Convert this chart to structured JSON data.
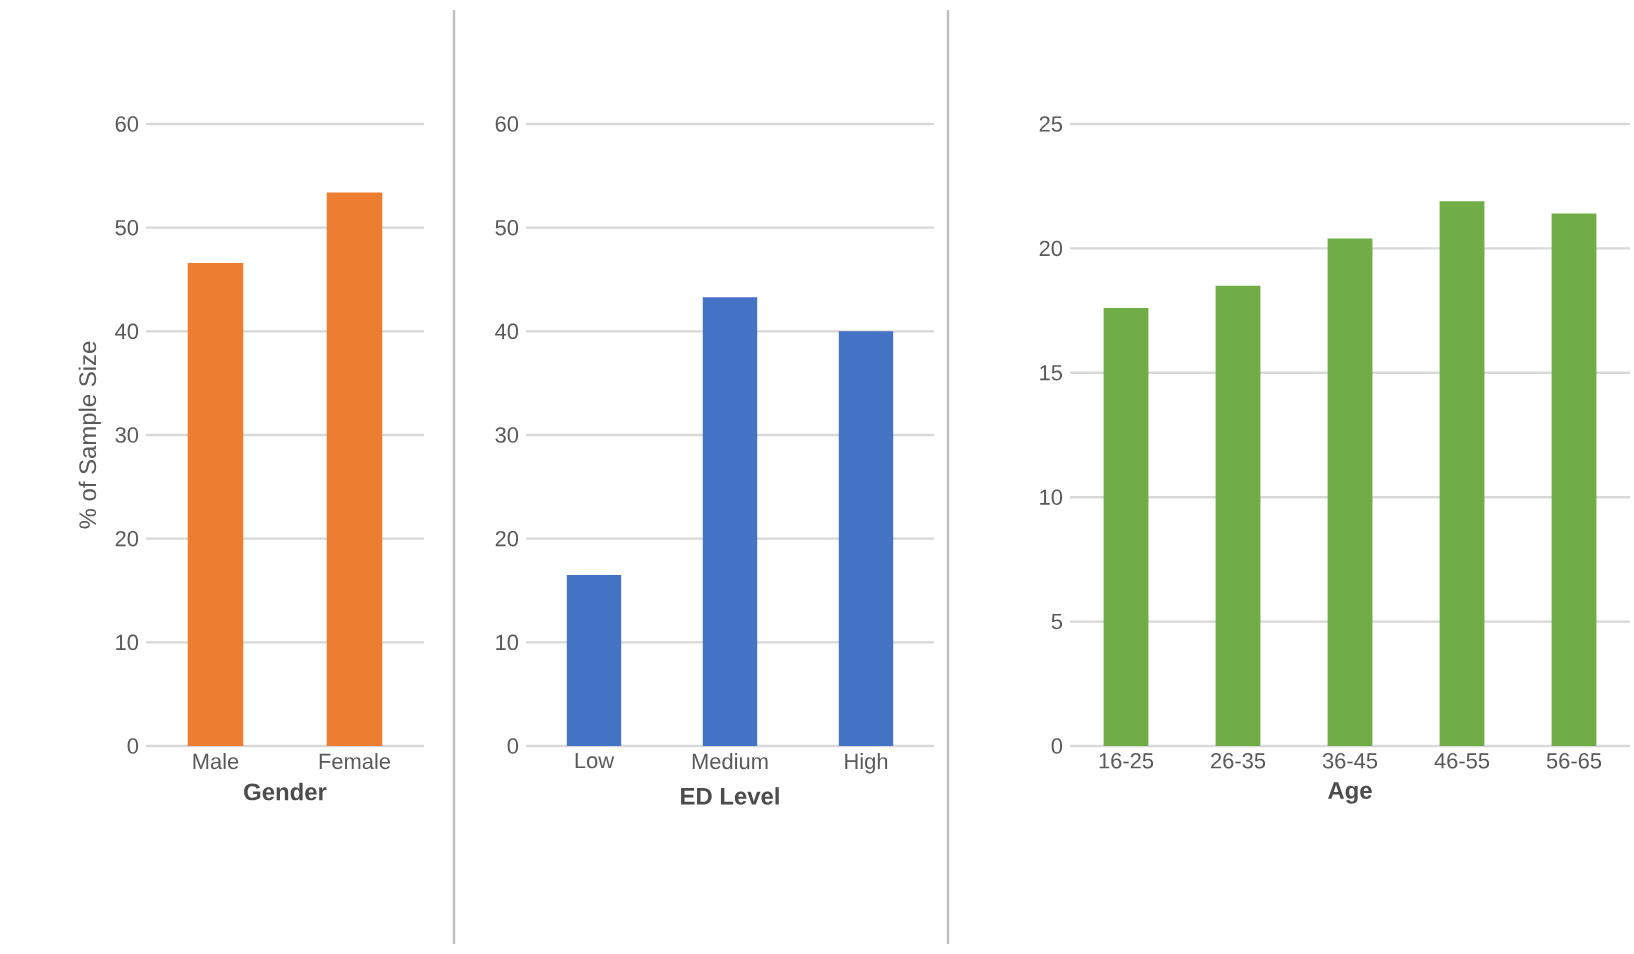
{
  "chart_data": [
    {
      "type": "bar",
      "xlabel": "Gender",
      "ylabel": "% of Sample Size",
      "categories": [
        "Male",
        "Female"
      ],
      "values": [
        46.6,
        53.4
      ],
      "color": "#ed7d31",
      "ylim": [
        0,
        60
      ],
      "yticks": [
        0,
        10,
        20,
        30,
        40,
        50,
        60
      ],
      "grid": "y"
    },
    {
      "type": "bar",
      "xlabel": "ED Level",
      "categories": [
        "Low",
        "Medium",
        "High"
      ],
      "values": [
        16.5,
        43.3,
        40
      ],
      "color": "#4472c4",
      "ylim": [
        0,
        60
      ],
      "yticks": [
        0,
        10,
        20,
        30,
        40,
        50,
        60
      ],
      "grid": "y"
    },
    {
      "type": "bar",
      "xlabel": "Age",
      "categories": [
        "16-25",
        "26-35",
        "36-45",
        "46-55",
        "56-65"
      ],
      "values": [
        17.6,
        18.5,
        20.4,
        21.9,
        21.4
      ],
      "color": "#70ad47",
      "ylim": [
        0,
        25
      ],
      "yticks": [
        0,
        5,
        10,
        15,
        20,
        25
      ],
      "grid": "y"
    }
  ]
}
